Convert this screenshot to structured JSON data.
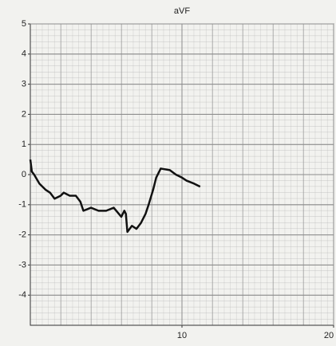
{
  "chart_data": {
    "type": "line",
    "title": "aVF",
    "series": [
      {
        "color": "#111111",
        "x": [
          0,
          0.1,
          0.25,
          0.6,
          1.0,
          1.3,
          1.6,
          2.0,
          2.2,
          2.6,
          3.0,
          3.3,
          3.5,
          4.0,
          4.5,
          5.0,
          5.5,
          6.0,
          6.2,
          6.3,
          6.4,
          6.7,
          7.0,
          7.3,
          7.6,
          7.8,
          8.1,
          8.3,
          8.6,
          9.2,
          9.6,
          10.0,
          10.3,
          10.8,
          11.2
        ],
        "values": [
          0.5,
          0.1,
          0.0,
          -0.3,
          -0.5,
          -0.6,
          -0.8,
          -0.7,
          -0.6,
          -0.7,
          -0.7,
          -0.9,
          -1.2,
          -1.1,
          -1.2,
          -1.2,
          -1.1,
          -1.4,
          -1.2,
          -1.3,
          -1.9,
          -1.7,
          -1.8,
          -1.6,
          -1.3,
          -1.0,
          -0.5,
          -0.1,
          0.2,
          0.15,
          0.0,
          -0.1,
          -0.2,
          -0.3,
          -0.4
        ]
      }
    ],
    "xlim": [
      0,
      20
    ],
    "xticks": [
      10,
      20
    ],
    "ylim": [
      -5,
      5
    ],
    "yticks": [
      5,
      4,
      3,
      2,
      1,
      0,
      -1,
      -2,
      -3,
      -4
    ],
    "grid": true
  }
}
